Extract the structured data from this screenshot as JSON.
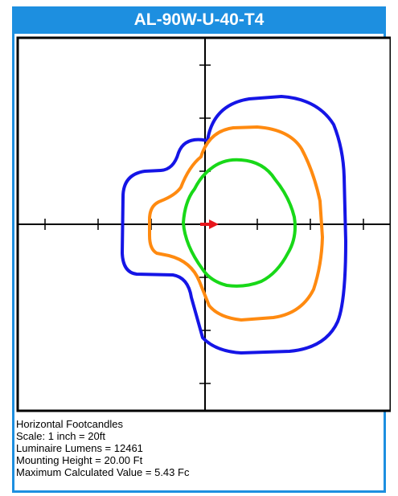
{
  "title": "AL-90W-U-40-T4",
  "info": {
    "line1": "Horizontal Footcandles",
    "line2": "Scale: 1 inch = 20ft",
    "line3": "Luminaire Lumens = 12461",
    "line4": "Mounting Height = 20.00 Ft",
    "line5": "Maximum Calculated Value = 5.43 Fc"
  },
  "colors": {
    "header": "#1d8fe0",
    "contour_outer": "#1515e6",
    "contour_middle": "#ff8a10",
    "contour_inner": "#18d818",
    "arrow": "#e8161c"
  },
  "icons": {
    "luminaire_marker": "right-arrow-icon"
  }
}
